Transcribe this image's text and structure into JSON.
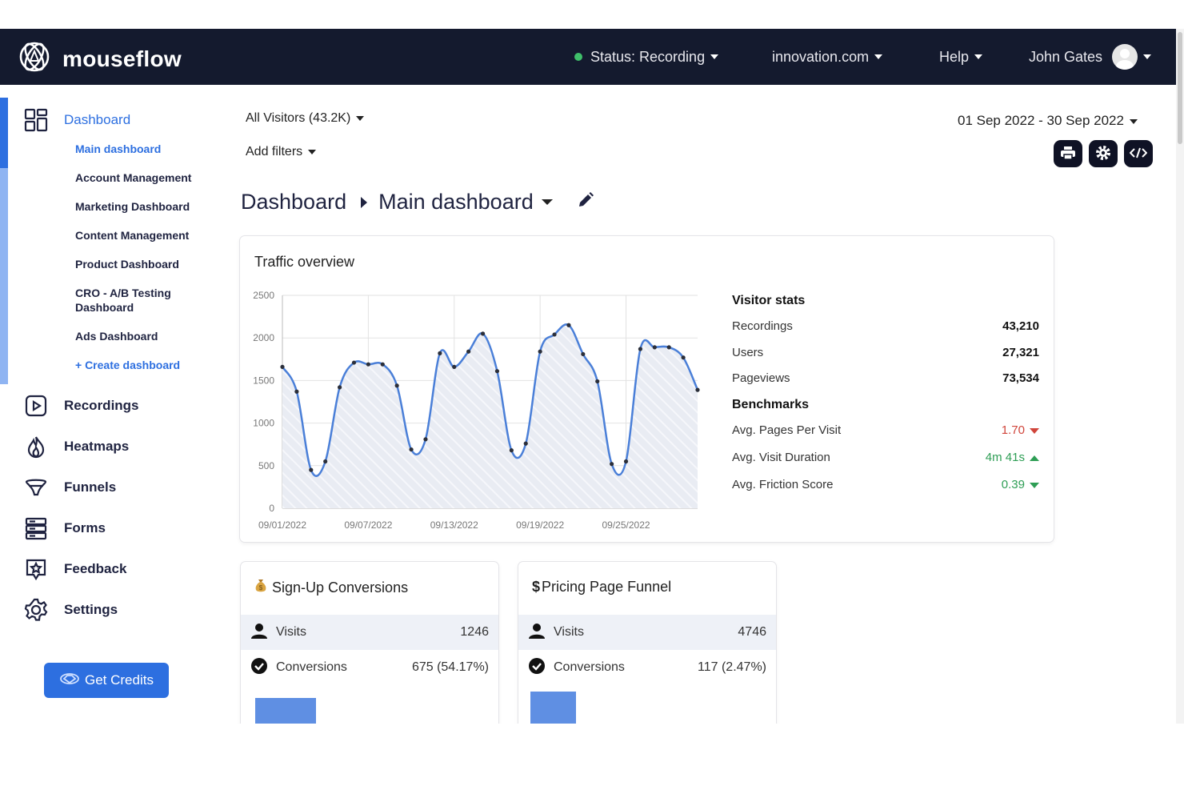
{
  "topbar": {
    "logo_text": "mouseflow",
    "status_label": "Status: Recording",
    "domain_label": "innovation.com",
    "help_label": "Help",
    "user_name": "John Gates"
  },
  "sidebar": {
    "dashboard_label": "Dashboard",
    "sub_items": [
      "Main dashboard",
      "Account Management",
      "Marketing Dashboard",
      "Content Management",
      "Product Dashboard",
      "CRO - A/B Testing Dashboard",
      "Ads Dashboard",
      "+ Create dashboard"
    ],
    "nav": [
      {
        "label": "Recordings",
        "icon": "play-icon"
      },
      {
        "label": "Heatmaps",
        "icon": "flame-icon"
      },
      {
        "label": "Funnels",
        "icon": "funnel-icon"
      },
      {
        "label": "Forms",
        "icon": "forms-icon"
      },
      {
        "label": "Feedback",
        "icon": "feedback-icon"
      },
      {
        "label": "Settings",
        "icon": "gear-icon"
      }
    ],
    "credits_label": "Get Credits"
  },
  "filters": {
    "segment_label": "All Visitors (43.2K)",
    "add_filters_label": "Add filters",
    "date_range": "01 Sep 2022 - 30 Sep 2022"
  },
  "breadcrumb": {
    "root": "Dashboard",
    "current": "Main dashboard"
  },
  "traffic": {
    "title": "Traffic overview",
    "stats_heading": "Visitor stats",
    "stats": [
      {
        "label": "Recordings",
        "value": "43,210"
      },
      {
        "label": "Users",
        "value": "27,321"
      },
      {
        "label": "Pageviews",
        "value": "73,534"
      }
    ],
    "benchmarks_heading": "Benchmarks",
    "benchmarks": [
      {
        "label": "Avg. Pages Per Visit",
        "value": "1.70",
        "trend": "down",
        "color": "#d0453b"
      },
      {
        "label": "Avg. Visit Duration",
        "value": "4m 41s",
        "trend": "up",
        "color": "#2e9e55"
      },
      {
        "label": "Avg. Friction Score",
        "value": "0.39",
        "trend": "down",
        "color": "#2e9e55"
      }
    ]
  },
  "chart_data": {
    "type": "area",
    "title": "",
    "xlabel": "",
    "ylabel": "",
    "ylim": [
      0,
      2500
    ],
    "yticks": [
      0,
      500,
      1000,
      1500,
      2000,
      2500
    ],
    "xtick_labels": [
      "09/01/2022",
      "09/07/2022",
      "09/13/2022",
      "09/19/2022",
      "09/25/2022"
    ],
    "x": [
      "09/01/2022",
      "09/02/2022",
      "09/03/2022",
      "09/04/2022",
      "09/05/2022",
      "09/06/2022",
      "09/07/2022",
      "09/08/2022",
      "09/09/2022",
      "09/10/2022",
      "09/11/2022",
      "09/12/2022",
      "09/13/2022",
      "09/14/2022",
      "09/15/2022",
      "09/16/2022",
      "09/17/2022",
      "09/18/2022",
      "09/19/2022",
      "09/20/2022",
      "09/21/2022",
      "09/22/2022",
      "09/23/2022",
      "09/24/2022",
      "09/25/2022",
      "09/26/2022",
      "09/27/2022",
      "09/28/2022",
      "09/29/2022",
      "09/30/2022"
    ],
    "values": [
      1660,
      1370,
      450,
      550,
      1420,
      1710,
      1690,
      1690,
      1440,
      690,
      810,
      1820,
      1660,
      1840,
      2050,
      1610,
      680,
      760,
      1840,
      2040,
      2150,
      1810,
      1490,
      520,
      550,
      1870,
      1890,
      1890,
      1770,
      1390
    ],
    "grid": true,
    "colors": {
      "line": "#4a7fd8",
      "point": "#2b2f3a",
      "fill": "#e9ecf3"
    }
  },
  "funnels": [
    {
      "title": "Sign-Up Conversions",
      "icon": "money-bag-icon",
      "rows": [
        {
          "label": "Visits",
          "value": "1246",
          "icon": "user-icon"
        },
        {
          "label": "Conversions",
          "value": "675 (54.17%)",
          "icon": "check-circle-icon"
        }
      ]
    },
    {
      "title": "Pricing Page Funnel",
      "icon": "dollar-icon",
      "rows": [
        {
          "label": "Visits",
          "value": "4746",
          "icon": "user-icon"
        },
        {
          "label": "Conversions",
          "value": "117 (2.47%)",
          "icon": "check-circle-icon"
        }
      ]
    }
  ],
  "colors": {
    "topbar": "#141a2e",
    "accent": "#2d6fe0",
    "status_green": "#3fbf6a"
  }
}
